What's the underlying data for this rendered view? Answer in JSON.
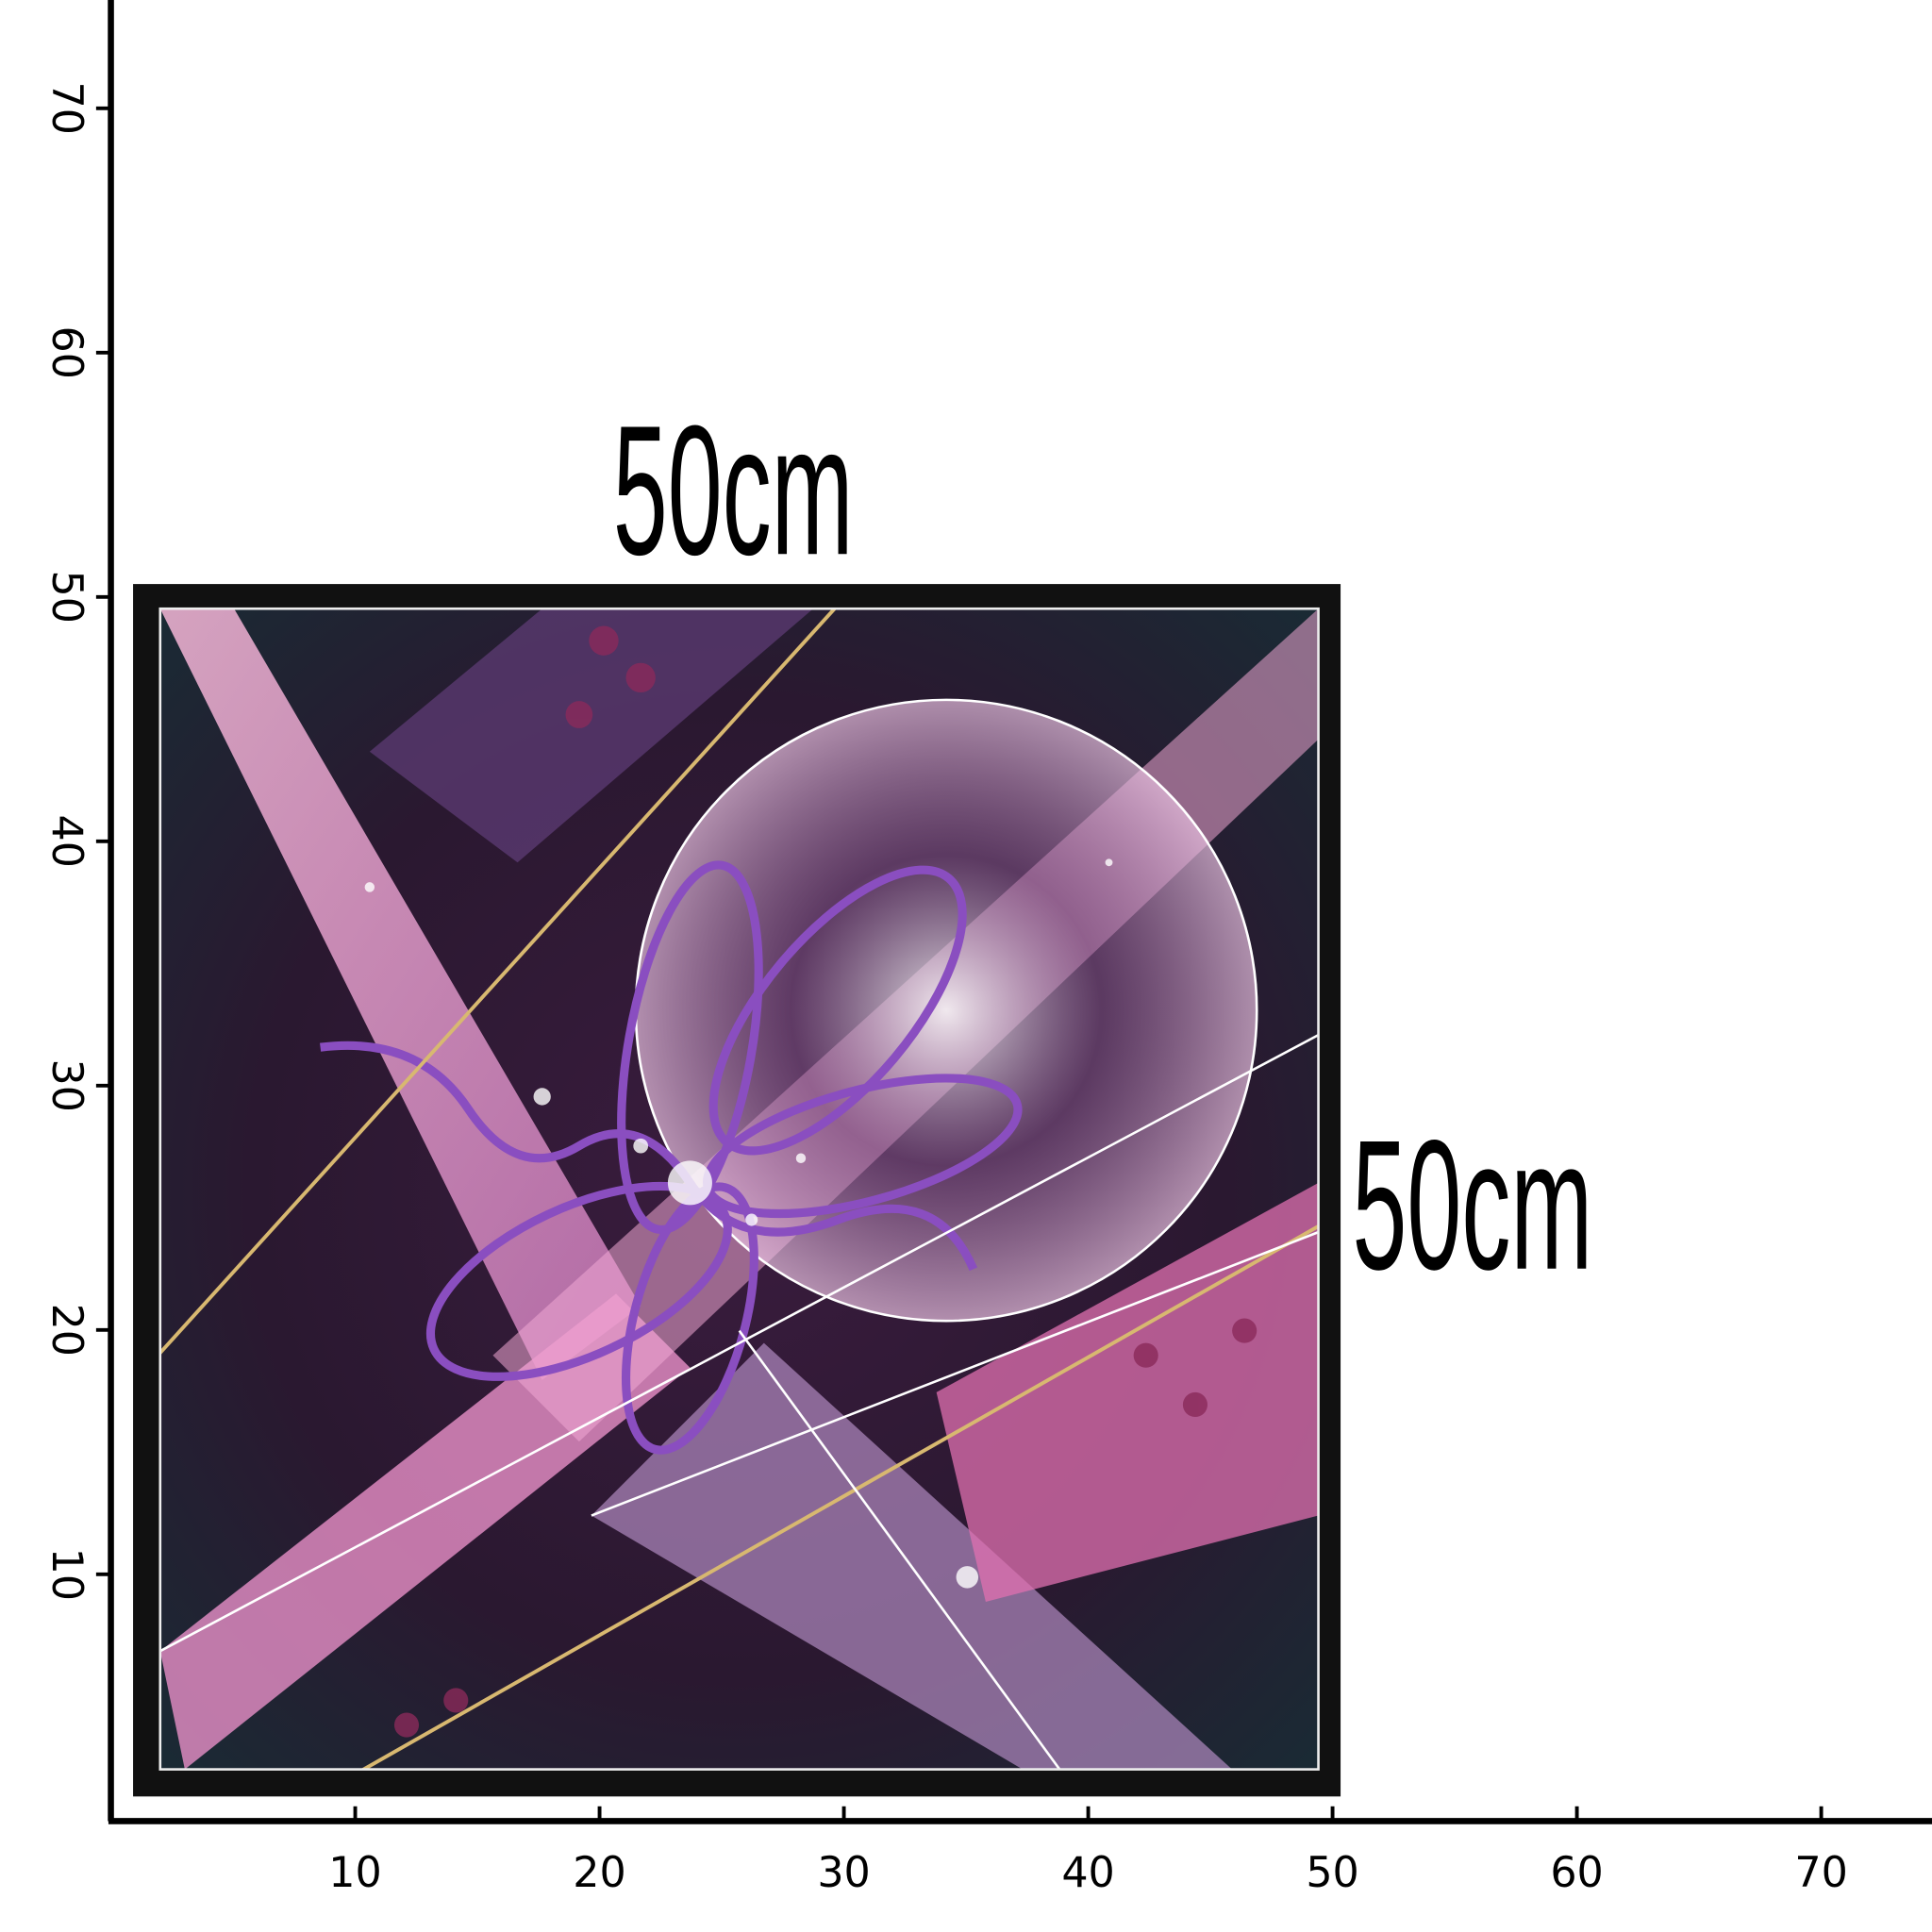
{
  "ruler": {
    "x_ticks": [
      "10",
      "20",
      "30",
      "40",
      "50",
      "60",
      "70"
    ],
    "y_ticks": [
      "10",
      "20",
      "30",
      "40",
      "50",
      "60",
      "70"
    ]
  },
  "dimensions": {
    "width": "50cm",
    "height": "50cm"
  }
}
